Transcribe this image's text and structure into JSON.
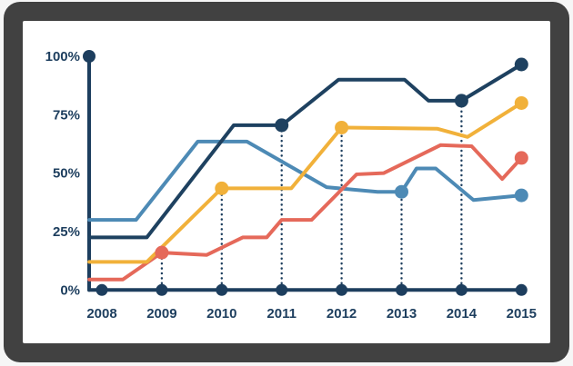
{
  "window": {
    "title": "Percentage line chart on framed screen"
  },
  "colors": {
    "frame": "#414141",
    "page_background": "#f6f6f6",
    "panel_background": "#ffffff",
    "axis": "#1d3e5e",
    "tick_label": "#1d3e5e",
    "guide_line": "#1d3e5e"
  },
  "chart_data": {
    "type": "line",
    "title": "",
    "xlabel": "",
    "ylabel": "",
    "xlim": [
      2007.79,
      2015
    ],
    "ylim": [
      0,
      100
    ],
    "grid": false,
    "legend": "none",
    "y_ticks": [
      {
        "label": "100%",
        "value": 100
      },
      {
        "label": "75%",
        "value": 75
      },
      {
        "label": "50%",
        "value": 50
      },
      {
        "label": "25%",
        "value": 25
      },
      {
        "label": "0%",
        "value": 0
      }
    ],
    "x_ticks": [
      {
        "label": "2008",
        "year": 2008
      },
      {
        "label": "2009",
        "year": 2009
      },
      {
        "label": "2010",
        "year": 2010
      },
      {
        "label": "2011",
        "year": 2011
      },
      {
        "label": "2012",
        "year": 2012
      },
      {
        "label": "2013",
        "year": 2013
      },
      {
        "label": "2014",
        "year": 2014
      },
      {
        "label": "2015",
        "year": 2015
      }
    ],
    "axis_markers": {
      "y_axis_top_dot_value": 100,
      "x_axis_dot_years": [
        2008,
        2009,
        2010,
        2011,
        2012,
        2013,
        2014,
        2015
      ]
    },
    "guides": [
      {
        "year": 2009,
        "top": 16
      },
      {
        "year": 2010,
        "top": 43.5
      },
      {
        "year": 2011,
        "top": 70.5
      },
      {
        "year": 2012,
        "top": 69.5
      },
      {
        "year": 2013,
        "top": 42
      },
      {
        "year": 2014,
        "top": 81
      }
    ],
    "series": [
      {
        "name": "steel-blue",
        "color": "#4d8ab5",
        "points": [
          [
            2007.79,
            30
          ],
          [
            2008.57,
            30
          ],
          [
            2009.6,
            63.5
          ],
          [
            2010.42,
            63.5
          ],
          [
            2011.75,
            44
          ],
          [
            2012.6,
            42
          ],
          [
            2013,
            42
          ],
          [
            2013.25,
            52
          ],
          [
            2013.57,
            52
          ],
          [
            2014.2,
            38.5
          ],
          [
            2015,
            40.5
          ]
        ],
        "markers": [
          [
            2013,
            42
          ],
          [
            2015,
            40.5
          ]
        ]
      },
      {
        "name": "salmon",
        "color": "#e5695a",
        "points": [
          [
            2007.79,
            4.5
          ],
          [
            2008.35,
            4.5
          ],
          [
            2009,
            16
          ],
          [
            2009.75,
            15
          ],
          [
            2010.35,
            22.5
          ],
          [
            2010.75,
            22.5
          ],
          [
            2011,
            30
          ],
          [
            2011.5,
            30
          ],
          [
            2012.25,
            49.5
          ],
          [
            2012.7,
            50
          ],
          [
            2013.65,
            62
          ],
          [
            2014.17,
            61.5
          ],
          [
            2014.68,
            47.5
          ],
          [
            2015,
            56.5
          ]
        ],
        "markers": [
          [
            2009,
            16
          ],
          [
            2015,
            56.5
          ]
        ]
      },
      {
        "name": "amber",
        "color": "#f1b13a",
        "points": [
          [
            2007.79,
            12
          ],
          [
            2008.75,
            12
          ],
          [
            2010,
            43.5
          ],
          [
            2011.16,
            43.5
          ],
          [
            2012,
            69.5
          ],
          [
            2013.6,
            69
          ],
          [
            2014.1,
            65.5
          ],
          [
            2015,
            80
          ]
        ],
        "markers": [
          [
            2010,
            43.5
          ],
          [
            2012,
            69.5
          ],
          [
            2015,
            80
          ]
        ]
      },
      {
        "name": "dark-navy",
        "color": "#1e4160",
        "points": [
          [
            2007.79,
            22.5
          ],
          [
            2008.75,
            22.5
          ],
          [
            2010.2,
            70.5
          ],
          [
            2011,
            70.5
          ],
          [
            2011.95,
            90
          ],
          [
            2013.05,
            90
          ],
          [
            2013.45,
            81
          ],
          [
            2014,
            81
          ],
          [
            2015,
            96.5
          ]
        ],
        "markers": [
          [
            2011,
            70.5
          ],
          [
            2014,
            81
          ],
          [
            2015,
            96.5
          ]
        ]
      }
    ]
  }
}
